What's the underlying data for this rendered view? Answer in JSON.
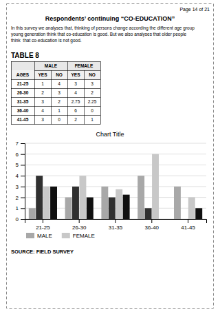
{
  "page_header": "Page 14 of 21",
  "section_title": "Respondents’ continuing “CO-EDUCATION”",
  "body_text": "In this survey we analyses that, thinking of persons change according the different age group\nyoung generation think that co-education is good. But we also analyses that older people\nthink  that co-education is not good.",
  "table": {
    "title": "TABLE 8",
    "groups": [
      "MALE",
      "FEMALE"
    ],
    "columns": [
      "AGES",
      "YES",
      "NO",
      "YES",
      "NO"
    ]
  },
  "source": "SOURCE: FIELD SURVEY",
  "chart_data": {
    "type": "bar",
    "title": "Chart Title",
    "categories": [
      "21-25",
      "26-30",
      "31-35",
      "36-40",
      "41-45"
    ],
    "series": [
      {
        "name": "MALE",
        "color": "#a8a8a8",
        "values": [
          1,
          2,
          3,
          4,
          3
        ]
      },
      {
        "color": "#303030",
        "values": [
          4,
          3,
          2,
          1,
          0
        ]
      },
      {
        "name": "FEMALE",
        "color": "#c8c8c8",
        "values": [
          3,
          4,
          2.75,
          6,
          2
        ]
      },
      {
        "color": "#101010",
        "values": [
          3,
          2,
          2.25,
          0,
          1
        ]
      }
    ],
    "ylim": [
      0,
      7
    ],
    "yticks": [
      0,
      1,
      2,
      3,
      4,
      5,
      6,
      7
    ],
    "grid": true,
    "legend": "bottom"
  }
}
